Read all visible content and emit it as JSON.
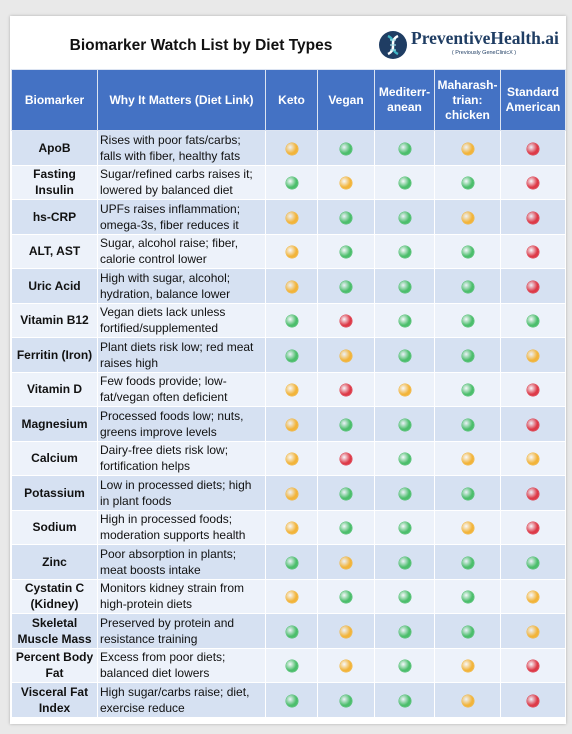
{
  "title": "Biomarker Watch List by Diet Types",
  "brand": {
    "name": "PreventiveHealth.ai",
    "subtitle": "( Previously GeneClinicX )",
    "logo_icon": "dna-helix-icon"
  },
  "colors": {
    "header": "#4472c4",
    "green": "#4cbe6c",
    "yellow": "#f2b43a",
    "red": "#dd3a48"
  },
  "columns": [
    "Biomarker",
    "Why It Matters (Diet Link)",
    "Keto",
    "Vegan",
    "Mediterr-anean",
    "Maharash-trian: chicken",
    "Standard American"
  ],
  "rows": [
    {
      "biomarker": "ApoB",
      "why": "Rises with poor fats/carbs; falls with fiber, healthy fats",
      "ratings": [
        "yellow",
        "green",
        "green",
        "yellow",
        "red"
      ]
    },
    {
      "biomarker": "Fasting Insulin",
      "why": "Sugar/refined carbs raises it; lowered by balanced diet",
      "ratings": [
        "green",
        "yellow",
        "green",
        "green",
        "red"
      ]
    },
    {
      "biomarker": "hs-CRP",
      "why": "UPFs raises inflammation; omega-3s, fiber reduces it",
      "ratings": [
        "yellow",
        "green",
        "green",
        "yellow",
        "red"
      ]
    },
    {
      "biomarker": "ALT, AST",
      "why": "Sugar, alcohol raise; fiber, calorie control lower",
      "ratings": [
        "yellow",
        "green",
        "green",
        "green",
        "red"
      ]
    },
    {
      "biomarker": "Uric Acid",
      "why": "High with sugar, alcohol; hydration, balance lower",
      "ratings": [
        "yellow",
        "green",
        "green",
        "green",
        "red"
      ]
    },
    {
      "biomarker": "Vitamin B12",
      "why": "Vegan diets lack unless fortified/supplemented",
      "ratings": [
        "green",
        "red",
        "green",
        "green",
        "green"
      ]
    },
    {
      "biomarker": "Ferritin (Iron)",
      "why": "Plant diets risk low; red meat raises high",
      "ratings": [
        "green",
        "yellow",
        "green",
        "green",
        "yellow"
      ]
    },
    {
      "biomarker": "Vitamin D",
      "why": "Few foods provide; low-fat/vegan often deficient",
      "ratings": [
        "yellow",
        "red",
        "yellow",
        "green",
        "red"
      ]
    },
    {
      "biomarker": "Magnesium",
      "why": "Processed foods low; nuts, greens improve levels",
      "ratings": [
        "yellow",
        "green",
        "green",
        "green",
        "red"
      ]
    },
    {
      "biomarker": "Calcium",
      "why": "Dairy-free diets risk low; fortification helps",
      "ratings": [
        "yellow",
        "red",
        "green",
        "yellow",
        "yellow"
      ]
    },
    {
      "biomarker": "Potassium",
      "why": "Low in processed diets; high in plant foods",
      "ratings": [
        "yellow",
        "green",
        "green",
        "green",
        "red"
      ]
    },
    {
      "biomarker": "Sodium",
      "why": "High in processed foods; moderation supports health",
      "ratings": [
        "yellow",
        "green",
        "green",
        "yellow",
        "red"
      ]
    },
    {
      "biomarker": "Zinc",
      "why": "Poor absorption in plants; meat boosts intake",
      "ratings": [
        "green",
        "yellow",
        "green",
        "green",
        "green"
      ]
    },
    {
      "biomarker": "Cystatin C (Kidney)",
      "why": "Monitors kidney strain from high-protein diets",
      "ratings": [
        "yellow",
        "green",
        "green",
        "green",
        "yellow"
      ]
    },
    {
      "biomarker": "Skeletal Muscle Mass",
      "why": "Preserved by protein and resistance training",
      "ratings": [
        "green",
        "yellow",
        "green",
        "green",
        "yellow"
      ]
    },
    {
      "biomarker": "Percent Body Fat",
      "why": "Excess from poor diets; balanced diet lowers",
      "ratings": [
        "green",
        "yellow",
        "green",
        "yellow",
        "red"
      ]
    },
    {
      "biomarker": "Visceral Fat Index",
      "why": "High sugar/carbs raise; diet, exercise reduce",
      "ratings": [
        "green",
        "green",
        "green",
        "yellow",
        "red"
      ]
    }
  ]
}
